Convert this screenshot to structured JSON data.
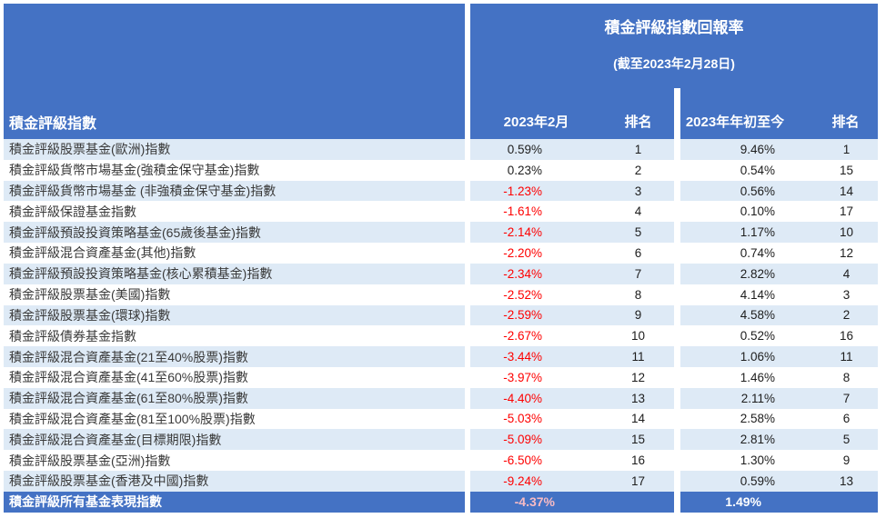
{
  "colors": {
    "header_blue": "#4472C4",
    "stripe": "#DEEAF6",
    "negative": "#FE0000",
    "footer_negative": "#F8BBC4"
  },
  "chart_data": {
    "type": "table",
    "title": "積金評級指數回報率",
    "subtitle": "(截至2023年2月28日)",
    "columns": [
      "積金評級指數",
      "2023年2月",
      "排名",
      "2023年年初至今",
      "排名"
    ],
    "rows": [
      [
        "積金評級股票基金(歐洲)指數",
        "0.59%",
        "1",
        "9.46%",
        "1"
      ],
      [
        "積金評級貨幣市場基金(強積金保守基金)指數",
        "0.23%",
        "2",
        "0.54%",
        "15"
      ],
      [
        "積金評級貨幣市場基金 (非強積金保守基金)指數",
        "-1.23%",
        "3",
        "0.56%",
        "14"
      ],
      [
        "積金評級保證基金指數",
        "-1.61%",
        "4",
        "0.10%",
        "17"
      ],
      [
        "積金評級預設投資策略基金(65歲後基金)指數",
        "-2.14%",
        "5",
        "1.17%",
        "10"
      ],
      [
        "積金評級混合資產基金(其他)指數",
        "-2.20%",
        "6",
        "0.74%",
        "12"
      ],
      [
        "積金評級預設投資策略基金(核心累積基金)指數",
        "-2.34%",
        "7",
        "2.82%",
        "4"
      ],
      [
        "積金評級股票基金(美國)指數",
        "-2.52%",
        "8",
        "4.14%",
        "3"
      ],
      [
        "積金評級股票基金(環球)指數",
        "-2.59%",
        "9",
        "4.58%",
        "2"
      ],
      [
        "積金評級債券基金指數",
        "-2.67%",
        "10",
        "0.52%",
        "16"
      ],
      [
        "積金評級混合資產基金(21至40%股票)指數",
        "-3.44%",
        "11",
        "1.06%",
        "11"
      ],
      [
        "積金評級混合資產基金(41至60%股票)指數",
        "-3.97%",
        "12",
        "1.46%",
        "8"
      ],
      [
        "積金評級混合資產基金(61至80%股票)指數",
        "-4.40%",
        "13",
        "2.11%",
        "7"
      ],
      [
        "積金評級混合資產基金(81至100%股票)指數",
        "-5.03%",
        "14",
        "2.58%",
        "6"
      ],
      [
        "積金評級混合資產基金(目標期限)指數",
        "-5.09%",
        "15",
        "2.81%",
        "5"
      ],
      [
        "積金評級股票基金(亞洲)指數",
        "-6.50%",
        "16",
        "1.30%",
        "9"
      ],
      [
        "積金評級股票基金(香港及中國)指數",
        "-9.24%",
        "17",
        "0.59%",
        "13"
      ]
    ],
    "footer": [
      "積金評級所有基金表現指數",
      "-4.37%",
      "1.49%"
    ],
    "layout": {
      "banded_rows": true,
      "negative_values_red": true,
      "footer_style": "blue-highlight"
    }
  }
}
